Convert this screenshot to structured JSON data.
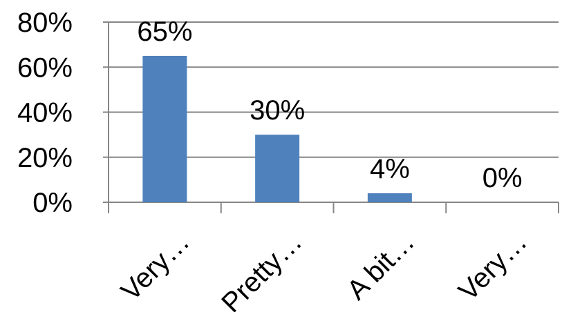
{
  "chart_data": {
    "type": "bar",
    "categories": [
      "Very…",
      "Pretty…",
      "A bit…",
      "Very…"
    ],
    "values": [
      65,
      30,
      4,
      0
    ],
    "data_labels": [
      "65%",
      "30%",
      "4%",
      "0%"
    ],
    "ylim": [
      0,
      80
    ],
    "y_ticks": [
      {
        "value": 0,
        "label": "0%"
      },
      {
        "value": 20,
        "label": "20%"
      },
      {
        "value": 40,
        "label": "40%"
      },
      {
        "value": 60,
        "label": "60%"
      },
      {
        "value": 80,
        "label": "80%"
      }
    ],
    "grid": true,
    "legend": "none",
    "bar_color": "#4F81BD",
    "grid_color": "#868686"
  }
}
